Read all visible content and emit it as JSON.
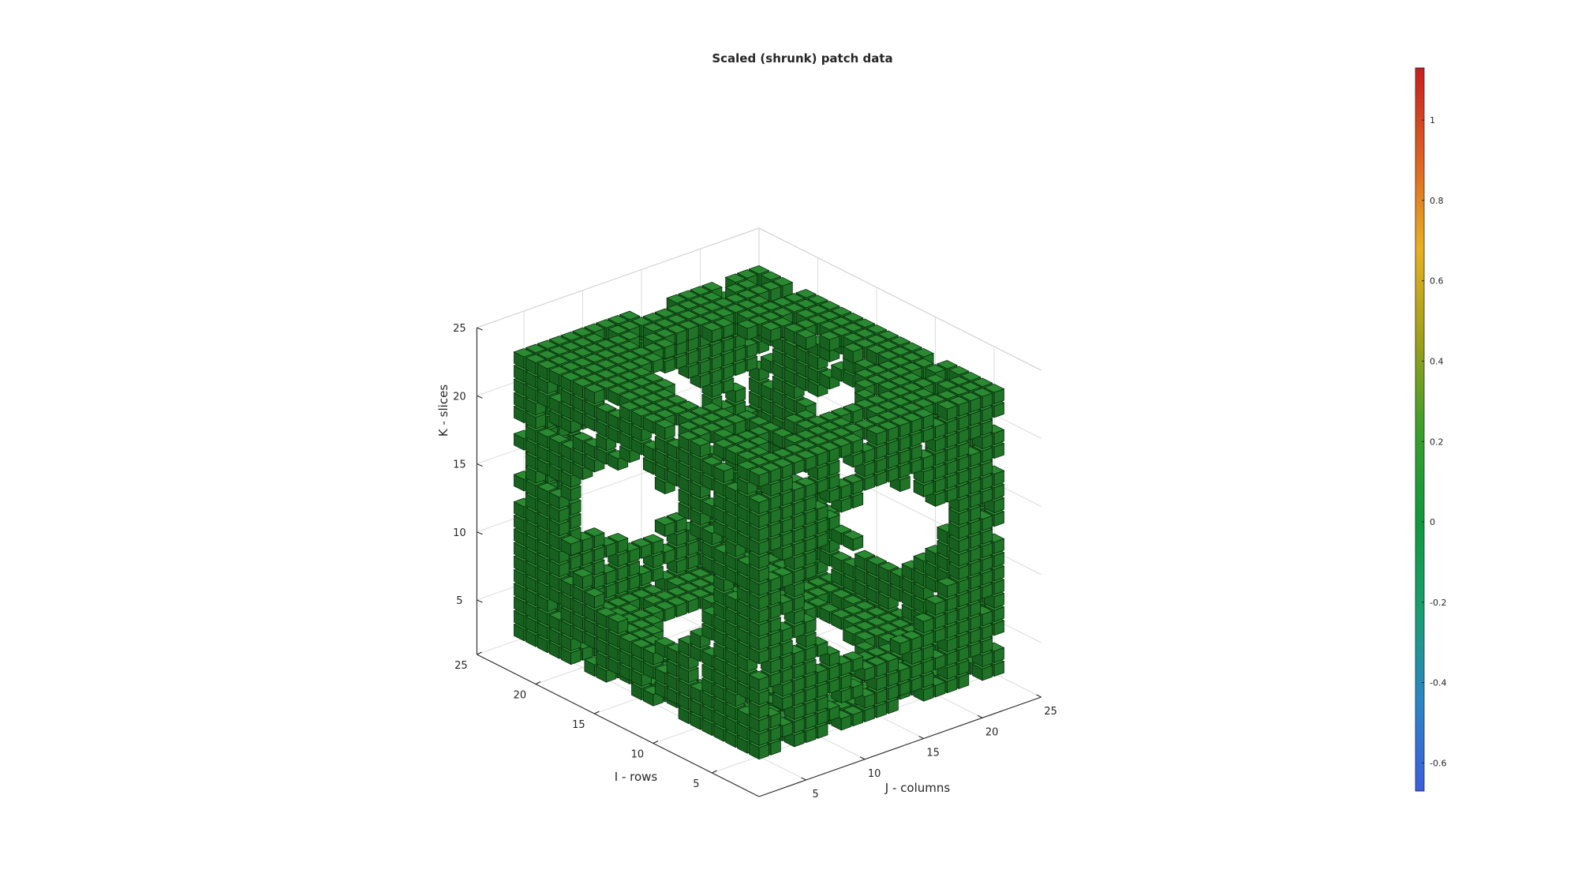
{
  "chart_data": {
    "type": "3d-voxel",
    "title": "Scaled (shrunk) patch data",
    "xlabel": "J - columns",
    "ylabel": "I - rows",
    "zlabel": "K - slices",
    "x_ticks": [
      "5",
      "10",
      "15",
      "20",
      "25"
    ],
    "y_ticks": [
      "5",
      "10",
      "15",
      "20",
      "25"
    ],
    "z_ticks": [
      "5",
      "10",
      "15",
      "20",
      "25"
    ],
    "xlim": [
      1,
      25
    ],
    "ylim": [
      1,
      25
    ],
    "zlim": [
      1,
      25
    ],
    "grid": true,
    "shape": "hollow cube of shrunk voxels with a circular hole through the centre of each face",
    "voxel_value": 0,
    "voxel_color": "#1e7a28",
    "edge_color": "#0b2e0e",
    "colorbar": {
      "colormap": "turbo",
      "clim": [
        -0.67,
        1.13
      ],
      "ticks": [
        -0.6,
        -0.4,
        -0.2,
        0,
        0.2,
        0.4,
        0.6,
        0.8,
        1
      ],
      "tick_labels": [
        "-0.6",
        "-0.4",
        "-0.2",
        "0",
        "0.2",
        "0.4",
        "0.6",
        "0.8",
        "1"
      ],
      "stops": [
        "#3a5ee0",
        "#2a86c8",
        "#16a070",
        "#0f9a3a",
        "#3aa02a",
        "#a0a018",
        "#e8b020",
        "#e06020",
        "#c81e1e"
      ],
      "placement": "right"
    }
  }
}
